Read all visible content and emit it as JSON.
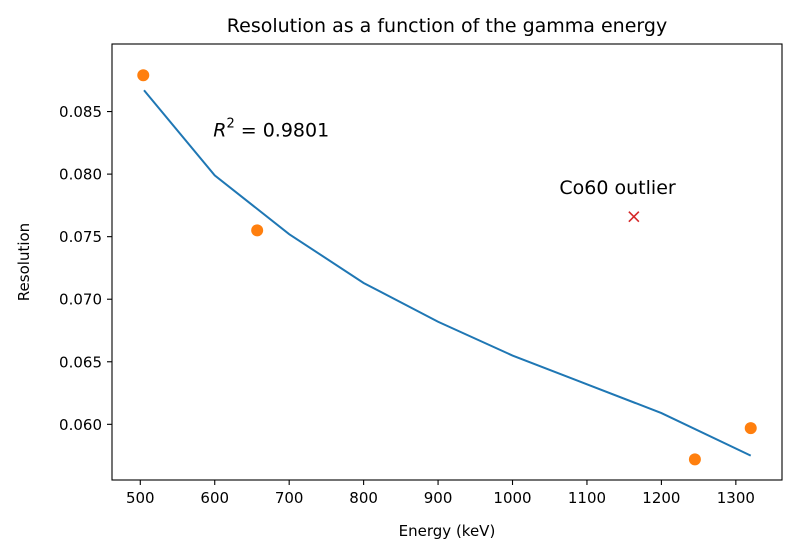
{
  "chart_data": {
    "type": "scatter",
    "title": "Resolution as a function of the gamma energy",
    "xlabel": "Energy (keV)",
    "ylabel": "Resolution",
    "xlim": [
      462,
      1362
    ],
    "ylim": [
      0.05555,
      0.0904
    ],
    "x_ticks": [
      500,
      600,
      700,
      800,
      900,
      1000,
      1100,
      1200,
      1300
    ],
    "y_ticks": [
      0.06,
      0.065,
      0.07,
      0.075,
      0.08,
      0.085
    ],
    "grid": false,
    "legend": "none",
    "series": [
      {
        "kind": "points",
        "marker": "circle",
        "color": "#ff7f0e",
        "x": [
          504,
          657,
          1245,
          1320
        ],
        "y": [
          0.0879,
          0.0755,
          0.0572,
          0.0597
        ]
      },
      {
        "kind": "fit-line",
        "color": "#1f77b4",
        "x": [
          505,
          600,
          700,
          800,
          900,
          1000,
          1100,
          1200,
          1320
        ],
        "y": [
          0.0867,
          0.0799,
          0.0752,
          0.0713,
          0.0682,
          0.0655,
          0.0632,
          0.0609,
          0.0575
        ]
      },
      {
        "kind": "outlier",
        "marker": "x",
        "color": "#d62728",
        "x": [
          1163
        ],
        "y": [
          0.0766
        ]
      }
    ],
    "annotations": [
      {
        "id": "r2",
        "text": "= 0.9801",
        "symbol": "R",
        "superscript": "2",
        "x": 598,
        "y": 0.083
      },
      {
        "id": "outlier",
        "text": "Co60 outlier",
        "x": 1063,
        "y": 0.0784
      }
    ]
  }
}
